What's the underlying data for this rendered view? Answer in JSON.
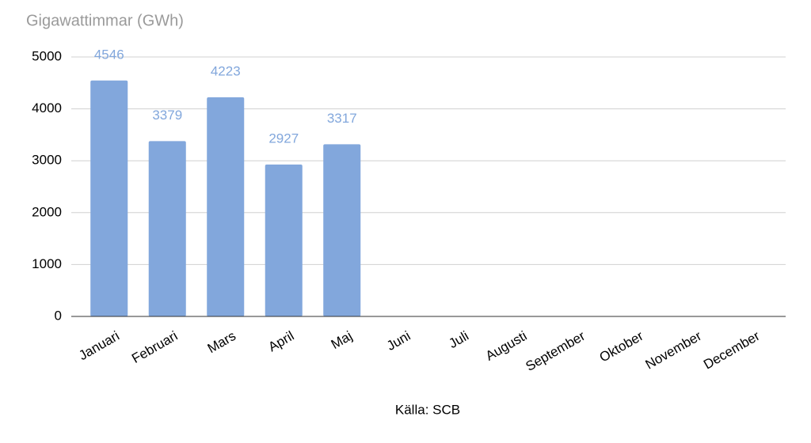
{
  "chart_data": {
    "type": "bar",
    "title": "Gigawattimmar (GWh)",
    "x_label": "Källa: SCB",
    "categories": [
      "Januari",
      "Februari",
      "Mars",
      "April",
      "Maj",
      "Juni",
      "Juli",
      "Augusti",
      "September",
      "Oktober",
      "November",
      "December"
    ],
    "values": [
      4546,
      3379,
      4223,
      2927,
      3317,
      null,
      null,
      null,
      null,
      null,
      null,
      null
    ],
    "color": "#82a7dc",
    "ylim": [
      0,
      5000
    ],
    "yticks": [
      0,
      1000,
      2000,
      3000,
      4000,
      5000
    ],
    "grid": true
  }
}
